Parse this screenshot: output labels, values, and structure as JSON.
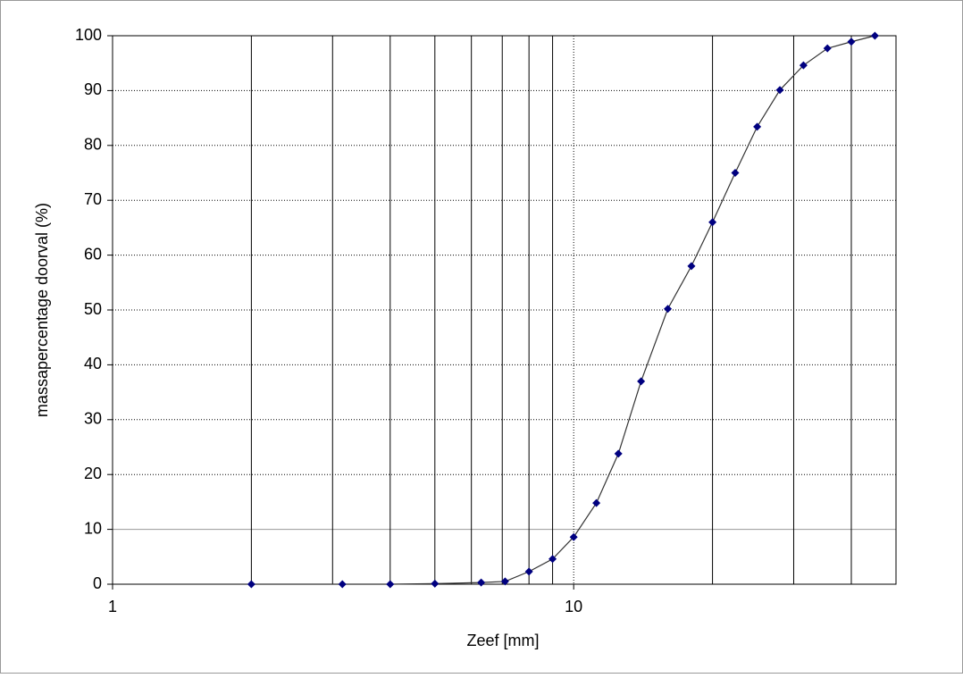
{
  "chart_data": {
    "type": "line",
    "x_label": "Zeef [mm]",
    "y_label": "massapercentage doorval (%)",
    "x": [
      2,
      3.15,
      4,
      5,
      6.3,
      7.1,
      8,
      9,
      10,
      11.2,
      12.5,
      14,
      16,
      18,
      20,
      22.4,
      25,
      28,
      31.5,
      35.5,
      40,
      45
    ],
    "series": [
      {
        "name": "doorval",
        "color": "#000080",
        "values": [
          0,
          0,
          0,
          0.1,
          0.3,
          0.5,
          2.3,
          4.6,
          8.6,
          14.8,
          23.8,
          37,
          50.2,
          58,
          66,
          75,
          83.4,
          90.1,
          94.6,
          97.7,
          98.9,
          100
        ]
      }
    ],
    "xlim": [
      1,
      50
    ],
    "x_log": true,
    "xticks": [
      1,
      10
    ],
    "x_minor_ticks": [
      2,
      3,
      4,
      5,
      6,
      7,
      8,
      9,
      20,
      30,
      40
    ],
    "ylim": [
      0,
      100
    ],
    "yticks": [
      0,
      10,
      20,
      30,
      40,
      50,
      60,
      70,
      80,
      90,
      100
    ],
    "grid": true
  }
}
